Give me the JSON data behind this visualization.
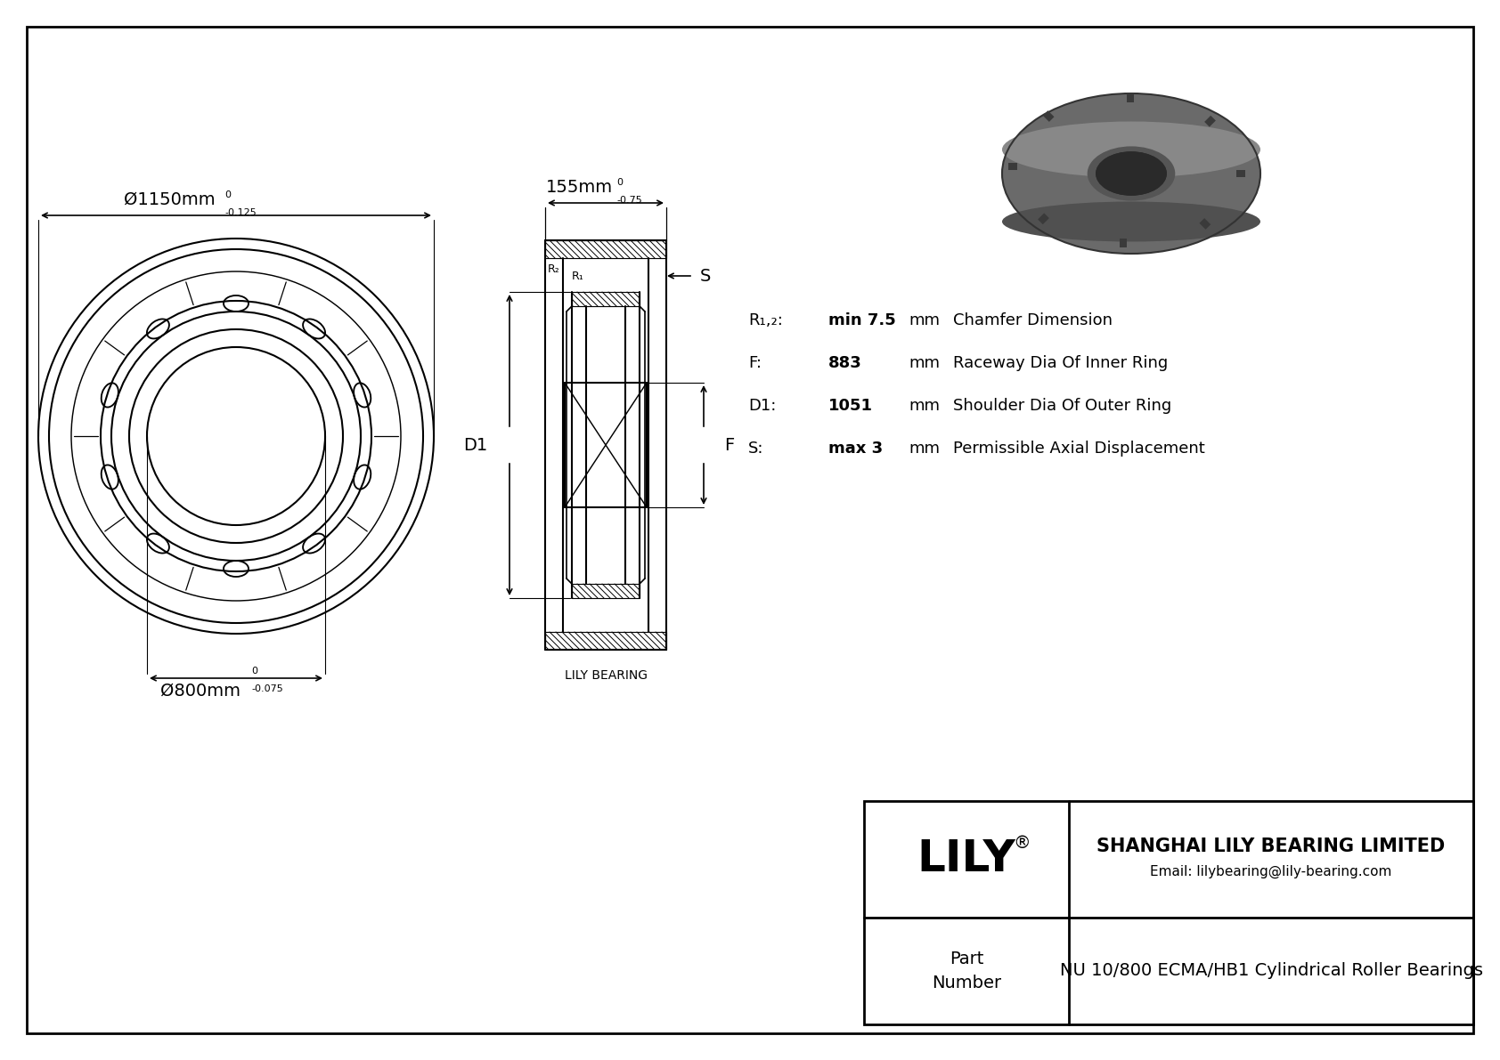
{
  "bg_color": "#ffffff",
  "line_color": "#000000",
  "title": "NU 10/800 ECMA/HB1 Cylindrical Roller Bearings",
  "company": "SHANGHAI LILY BEARING LIMITED",
  "email": "Email: lilybearing@lily-bearing.com",
  "lily_brand": "LILY",
  "part_label": "Part\nNumber",
  "dims": {
    "outer_dia_label": "Ø1150mm",
    "outer_dia_tol_top": "0",
    "outer_dia_tol_bot": "-0.125",
    "inner_dia_label": "Ø800mm",
    "inner_dia_tol_top": "0",
    "inner_dia_tol_bot": "-0.075",
    "width_label": "155mm",
    "width_tol_top": "0",
    "width_tol_bot": "-0.75"
  },
  "specs": [
    {
      "sym": "R₁,₂:",
      "val": "min 7.5",
      "unit": "mm",
      "desc": "Chamfer Dimension"
    },
    {
      "sym": "F:",
      "val": "883",
      "unit": "mm",
      "desc": "Raceway Dia Of Inner Ring"
    },
    {
      "sym": "D1:",
      "val": "1051",
      "unit": "mm",
      "desc": "Shoulder Dia Of Outer Ring"
    },
    {
      "sym": "S:",
      "val": "max 3",
      "unit": "mm",
      "desc": "Permissible Axial Displacement"
    }
  ],
  "lily_bearing_label": "LILY BEARING"
}
